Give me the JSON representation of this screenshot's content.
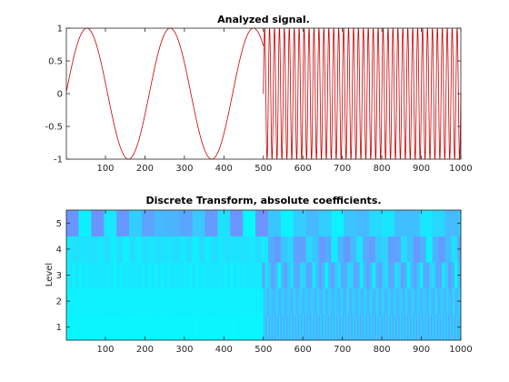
{
  "chart_data": [
    {
      "type": "line",
      "title": "Analyzed signal.",
      "xlabel": "",
      "ylabel": "",
      "xlim": [
        1,
        1000
      ],
      "ylim": [
        -1,
        1
      ],
      "grid": false,
      "color": "#cc0000",
      "x_ticks": [
        "100",
        "200",
        "300",
        "400",
        "500",
        "600",
        "700",
        "800",
        "900",
        "1000"
      ],
      "y_ticks": [
        "-1",
        "-0.5",
        "0",
        "0.5",
        "1"
      ],
      "series": [
        {
          "segments": [
            {
              "x_start": 1,
              "x_end": 500,
              "function": "sin",
              "period": 211
            },
            {
              "x_start": 500,
              "x_end": 1000,
              "function": "sin",
              "period": 12.5
            }
          ]
        }
      ]
    },
    {
      "type": "heatmap",
      "title": "Discrete Transform, absolute coefficients.",
      "xlabel": "",
      "ylabel": "Level",
      "xlim": [
        1,
        1000
      ],
      "rows": [
        "1",
        "2",
        "3",
        "4",
        "5"
      ],
      "x_ticks": [
        "100",
        "200",
        "300",
        "400",
        "500",
        "600",
        "700",
        "800",
        "900",
        "1000"
      ],
      "y_ticks": [
        "1",
        "2",
        "3",
        "4",
        "5"
      ],
      "colormap": [
        "#00ffff",
        "#8080ff"
      ],
      "levels": [
        {
          "level": 1,
          "segment_width": 2,
          "low_region": [
            0.04,
            0.1
          ],
          "high_region": [
            0.15,
            0.7
          ]
        },
        {
          "level": 2,
          "segment_width": 4,
          "low_region": [
            0.05,
            0.14
          ],
          "high_region": [
            0.25,
            0.6
          ]
        },
        {
          "level": 3,
          "segment_width": 8,
          "low_region": [
            0.08,
            0.22
          ],
          "high_region": [
            0.05,
            0.75
          ]
        },
        {
          "level": 4,
          "segment_width": 16,
          "low_region": [
            0.1,
            0.28
          ],
          "high_region": [
            0.1,
            0.8
          ]
        },
        {
          "level": 5,
          "segment_width": 32,
          "low_region": [
            0.05,
            0.85
          ],
          "high_region": [
            0.05,
            0.55
          ]
        }
      ],
      "boundary_x": 500
    }
  ]
}
